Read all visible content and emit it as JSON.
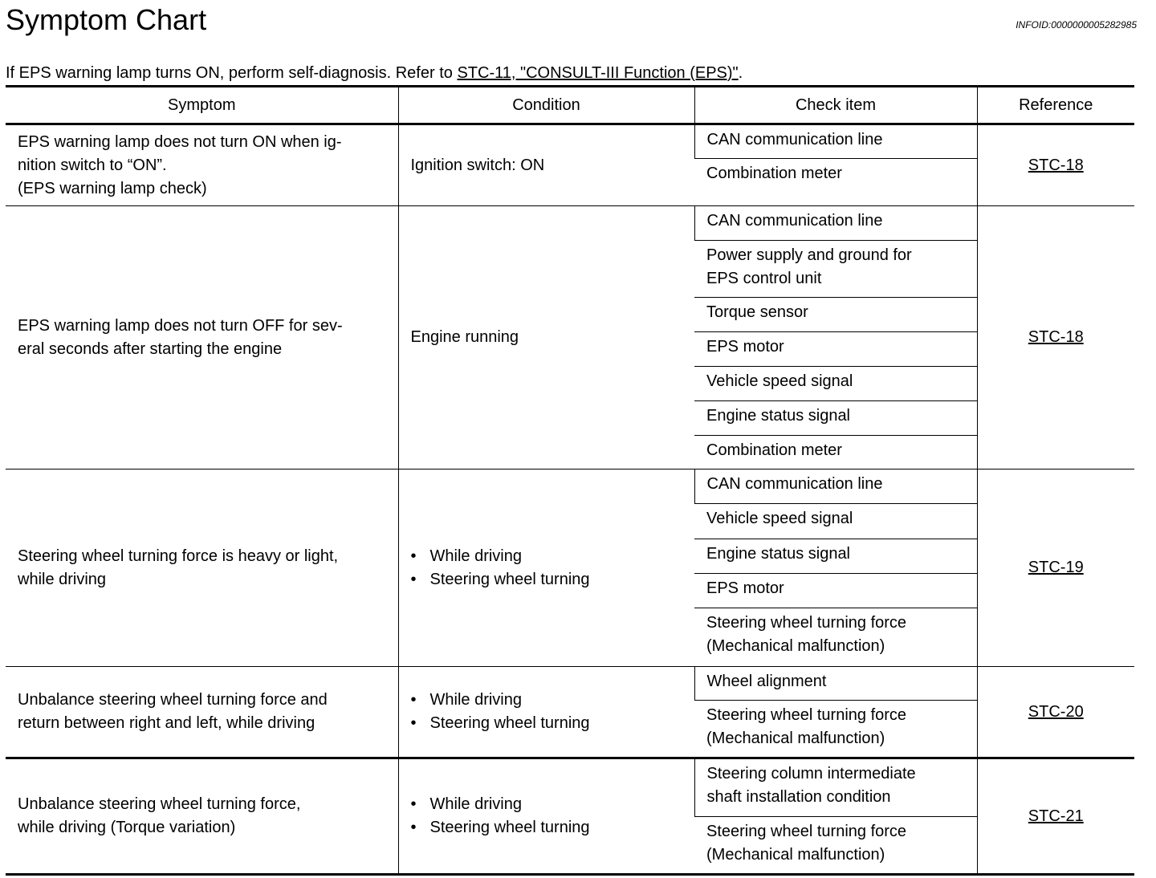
{
  "title": "Symptom Chart",
  "infoid": "INFOID:0000000005282985",
  "intro": {
    "text": "If EPS warning lamp turns ON, perform self-diagnosis. Refer to ",
    "link": "STC-11, \"CONSULT-III Function (EPS)\"",
    "end": "."
  },
  "headers": [
    "Symptom",
    "Condition",
    "Check item",
    "Reference"
  ],
  "groups": [
    {
      "symptom": [
        "EPS warning lamp does not turn ON when ig-",
        "nition switch to “ON”.",
        "(EPS warning lamp check)"
      ],
      "condition": [
        "Ignition switch: ON"
      ],
      "bullets": false,
      "checks": [
        [
          "CAN communication line"
        ],
        [
          "Combination meter"
        ]
      ],
      "reference": "STC-18"
    },
    {
      "symptom": [
        "EPS warning lamp does not turn OFF for sev-",
        "eral seconds after starting the engine"
      ],
      "condition": [
        "Engine running"
      ],
      "bullets": false,
      "checks": [
        [
          "CAN communication line"
        ],
        [
          "Power supply and ground for",
          "EPS control unit"
        ],
        [
          "Torque sensor"
        ],
        [
          "EPS motor"
        ],
        [
          "Vehicle speed signal"
        ],
        [
          "Engine status signal"
        ],
        [
          "Combination meter"
        ]
      ],
      "reference": "STC-18"
    },
    {
      "symptom": [
        "Steering wheel turning force is heavy or light,",
        "while driving"
      ],
      "condition": [
        "While driving",
        "Steering wheel turning"
      ],
      "bullets": true,
      "checks": [
        [
          "CAN communication line"
        ],
        [
          "Vehicle speed signal"
        ],
        [
          "Engine status signal"
        ],
        [
          "EPS motor"
        ],
        [
          "Steering wheel turning force",
          "(Mechanical malfunction)"
        ]
      ],
      "reference": "STC-19"
    },
    {
      "symptom": [
        "Unbalance steering wheel turning force and",
        "return between right and left, while driving"
      ],
      "condition": [
        "While driving",
        "Steering wheel turning"
      ],
      "bullets": true,
      "checks": [
        [
          "Wheel alignment"
        ],
        [
          "Steering wheel turning force",
          "(Mechanical malfunction)"
        ]
      ],
      "reference": "STC-20"
    },
    {
      "symptom": [
        "Unbalance steering wheel turning force,",
        "while driving (Torque variation)"
      ],
      "condition": [
        "While driving",
        "Steering wheel turning"
      ],
      "bullets": true,
      "checks": [
        [
          "Steering column intermediate",
          "shaft installation condition"
        ],
        [
          "Steering wheel turning force",
          "(Mechanical malfunction)"
        ]
      ],
      "reference": "STC-21"
    }
  ]
}
